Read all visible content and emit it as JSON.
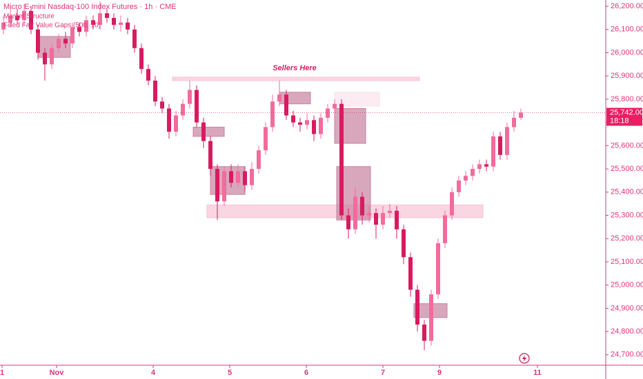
{
  "chart_data": {
    "type": "candlestick",
    "title": "Micro E-mini Nasdaq-100 Index Futures · 1h · CME",
    "indicators": [
      "Market Structure",
      "Filled Fair Value Gaps (500, 10)"
    ],
    "annotation": "Sellers Here",
    "up_color": "#f26b9c",
    "down_color": "#d81b60",
    "open": [
      26100,
      26130,
      26160,
      26140,
      26180,
      26100,
      26000,
      25950,
      26020,
      26060,
      26040,
      26110,
      26090,
      26140,
      26120,
      26170,
      26150,
      26120,
      26130,
      26100,
      26020,
      25930,
      25880,
      25790,
      25760,
      25660,
      25730,
      25780,
      25840,
      25700,
      25620,
      25500,
      25360,
      25490,
      25440,
      25490,
      25430,
      25500,
      25580,
      25680,
      25790,
      25820,
      25730,
      25700,
      25690,
      25710,
      25650,
      25720,
      25760,
      25780,
      25300,
      25240,
      25380,
      25300,
      25310,
      25260,
      25310,
      25320,
      25240,
      25120,
      24980,
      24830,
      24760,
      24960,
      25180,
      25300,
      25400,
      25450,
      25470,
      25500,
      25520,
      25510,
      25640,
      25560,
      25680,
      25720
    ],
    "high": [
      26160,
      26190,
      26190,
      26210,
      26200,
      26120,
      26020,
      26040,
      26080,
      26090,
      26130,
      26130,
      26160,
      26160,
      26220,
      26190,
      26170,
      26160,
      26150,
      26120,
      26040,
      25950,
      25900,
      25810,
      25780,
      25750,
      25800,
      25880,
      25860,
      25720,
      25640,
      25520,
      25510,
      25520,
      25520,
      25510,
      25530,
      25600,
      25700,
      25820,
      25880,
      25840,
      25750,
      25720,
      25740,
      25730,
      25740,
      25780,
      25800,
      25800,
      25330,
      25420,
      25400,
      25340,
      25330,
      25340,
      25350,
      25340,
      25260,
      25140,
      25000,
      24850,
      24980,
      25200,
      25320,
      25420,
      25470,
      25490,
      25520,
      25540,
      25540,
      25660,
      25660,
      25700,
      25750,
      25760
    ],
    "low": [
      26080,
      26110,
      26120,
      26120,
      26080,
      25970,
      25880,
      25930,
      26000,
      26020,
      26020,
      26070,
      26070,
      26100,
      26100,
      26130,
      26100,
      26090,
      26080,
      26000,
      25910,
      25860,
      25770,
      25740,
      25630,
      25640,
      25710,
      25760,
      25680,
      25590,
      25470,
      25280,
      25340,
      25420,
      25420,
      25400,
      25410,
      25480,
      25560,
      25660,
      25770,
      25710,
      25680,
      25660,
      25670,
      25620,
      25630,
      25700,
      25740,
      25280,
      25200,
      25220,
      25260,
      25270,
      25200,
      25240,
      25290,
      25200,
      25090,
      24950,
      24800,
      24720,
      24740,
      24940,
      25160,
      25280,
      25380,
      25430,
      25450,
      25480,
      25490,
      25490,
      25540,
      25540,
      25660,
      25710
    ],
    "close": [
      26130,
      26160,
      26140,
      26180,
      26100,
      26000,
      25950,
      26020,
      26060,
      26040,
      26110,
      26090,
      26140,
      26120,
      26170,
      26150,
      26120,
      26130,
      26100,
      26020,
      25930,
      25880,
      25790,
      25760,
      25660,
      25730,
      25780,
      25840,
      25700,
      25620,
      25500,
      25360,
      25490,
      25440,
      25490,
      25430,
      25500,
      25580,
      25680,
      25790,
      25820,
      25730,
      25700,
      25690,
      25710,
      25650,
      25720,
      25760,
      25780,
      25300,
      25240,
      25380,
      25300,
      25310,
      25260,
      25310,
      25320,
      25240,
      25120,
      24980,
      24830,
      24760,
      24960,
      25180,
      25300,
      25400,
      25450,
      25470,
      25500,
      25520,
      25510,
      25640,
      25560,
      25680,
      25720,
      25742
    ],
    "zones": [
      {
        "x": [
          24.5,
          60.3
        ],
        "y": [
          25880,
          25895
        ],
        "color": "#f8c3d6"
      },
      {
        "x": [
          29.5,
          69.5
        ],
        "y": [
          25290,
          25345
        ],
        "color": "#f8c3d6"
      },
      {
        "x": [
          48,
          54.5
        ],
        "y": [
          25770,
          25830
        ],
        "color": "#fbe3ec"
      },
      {
        "x": [
          5,
          9.7
        ],
        "y": [
          25980,
          26070
        ],
        "color": "#c9819f"
      },
      {
        "x": [
          30,
          35
        ],
        "y": [
          25390,
          25510
        ],
        "color": "#c9819f"
      },
      {
        "x": [
          27.5,
          32
        ],
        "y": [
          25640,
          25680
        ],
        "color": "#c9819f"
      },
      {
        "x": [
          40,
          44.5
        ],
        "y": [
          25780,
          25830
        ],
        "color": "#c9819f"
      },
      {
        "x": [
          48,
          52.5
        ],
        "y": [
          25610,
          25760
        ],
        "color": "#c9819f"
      },
      {
        "x": [
          48.3,
          53.2
        ],
        "y": [
          25280,
          25510
        ],
        "color": "#c9819f"
      },
      {
        "x": [
          59.5,
          64.3
        ],
        "y": [
          24860,
          24920
        ],
        "color": "#c9819f"
      }
    ],
    "last_price": {
      "value": 25742,
      "label": "25,742.00"
    },
    "countdown": "18:18",
    "xlim": [
      -0.5,
      87.3
    ],
    "xticks": [
      {
        "value": -0.2,
        "label": "1"
      },
      {
        "value": 7.7,
        "label": "Nov"
      },
      {
        "value": 21.7,
        "label": "4"
      },
      {
        "value": 32.8,
        "label": "5"
      },
      {
        "value": 43.9,
        "label": "6"
      },
      {
        "value": 55,
        "label": "7"
      },
      {
        "value": 63.2,
        "label": "9"
      },
      {
        "value": 77.4,
        "label": "11"
      }
    ],
    "ylim": [
      24655,
      26227
    ],
    "yticks": [
      {
        "value": 26200,
        "label": "26,200.00"
      },
      {
        "value": 26100,
        "label": "26,100.00"
      },
      {
        "value": 26000,
        "label": "26,000.00"
      },
      {
        "value": 25900,
        "label": "25,900.00"
      },
      {
        "value": 25800,
        "label": "25,800.00"
      },
      {
        "value": 25700,
        "label": "25,700.00"
      },
      {
        "value": 25600,
        "label": "25,600.00"
      },
      {
        "value": 25500,
        "label": "25,500.00"
      },
      {
        "value": 25400,
        "label": "25,400.00"
      },
      {
        "value": 25300,
        "label": "25,300.00"
      },
      {
        "value": 25200,
        "label": "25,200.00"
      },
      {
        "value": 25100,
        "label": "25,100.00"
      },
      {
        "value": 25000,
        "label": "25,000.00"
      },
      {
        "value": 24900,
        "label": "24,900.00"
      },
      {
        "value": 24800,
        "label": "24,800.00"
      },
      {
        "value": 24700,
        "label": "24,700.00"
      }
    ]
  }
}
